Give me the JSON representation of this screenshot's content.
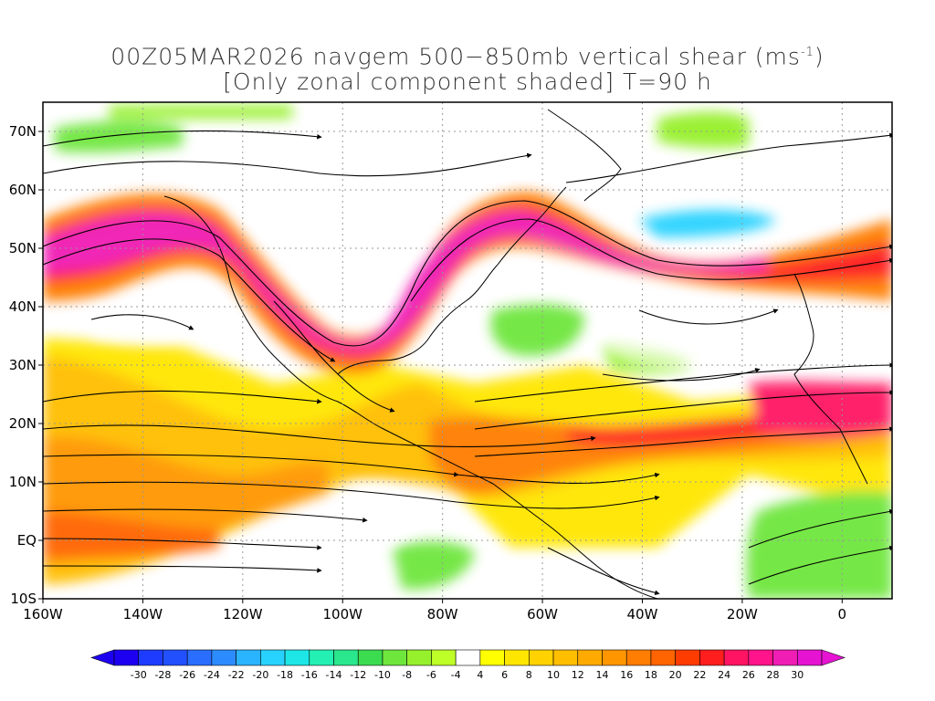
{
  "header": {
    "title_line1_prefix": "00Z05MAR2026 navgem 500−850mb vertical shear (ms",
    "title_line1_sup": "-1",
    "title_line1_suffix": ")",
    "title_line2": "[Only zonal component shaded] T=90 h"
  },
  "map": {
    "projection": "cylindrical equidistant",
    "lon_range": [
      -160,
      10
    ],
    "lat_range": [
      -10,
      75
    ],
    "lat_labels": [
      {
        "value": 70,
        "text": "70N"
      },
      {
        "value": 60,
        "text": "60N"
      },
      {
        "value": 50,
        "text": "50N"
      },
      {
        "value": 40,
        "text": "40N"
      },
      {
        "value": 30,
        "text": "30N"
      },
      {
        "value": 20,
        "text": "20N"
      },
      {
        "value": 10,
        "text": "10N"
      },
      {
        "value": 0,
        "text": "EQ"
      },
      {
        "value": -10,
        "text": "10S"
      }
    ],
    "lon_labels": [
      {
        "value": -160,
        "text": "160W"
      },
      {
        "value": -140,
        "text": "140W"
      },
      {
        "value": -120,
        "text": "120W"
      },
      {
        "value": -100,
        "text": "100W"
      },
      {
        "value": -80,
        "text": "80W"
      },
      {
        "value": -60,
        "text": "60W"
      },
      {
        "value": -40,
        "text": "40W"
      },
      {
        "value": -20,
        "text": "20W"
      },
      {
        "value": 0,
        "text": "0"
      }
    ],
    "grid": "dotted",
    "overlay": "streamlines"
  },
  "colorbar": {
    "labels": [
      "-30",
      "-28",
      "-26",
      "-24",
      "-22",
      "-20",
      "-18",
      "-16",
      "-14",
      "-12",
      "-10",
      "-8",
      "-6",
      "-4",
      "4",
      "6",
      "8",
      "10",
      "12",
      "14",
      "16",
      "18",
      "20",
      "22",
      "24",
      "26",
      "28",
      "30"
    ],
    "colors": [
      "#1e00f0",
      "#1e3cff",
      "#2350ff",
      "#2a6eff",
      "#2c8cff",
      "#2ab4ff",
      "#28d2ff",
      "#1ee6e6",
      "#24f0b4",
      "#2ae68c",
      "#3cdc50",
      "#6ee63c",
      "#96f02c",
      "#beff28",
      "#ffffff",
      "#ffff00",
      "#ffe600",
      "#ffd200",
      "#ffbe00",
      "#ffaa00",
      "#ff9600",
      "#ff7d00",
      "#ff6400",
      "#ff3c00",
      "#ff1e1e",
      "#ff1464",
      "#ff148c",
      "#f01eb4",
      "#e614d2"
    ],
    "under_color": "#1e00f0",
    "over_color": "#e614d2"
  }
}
